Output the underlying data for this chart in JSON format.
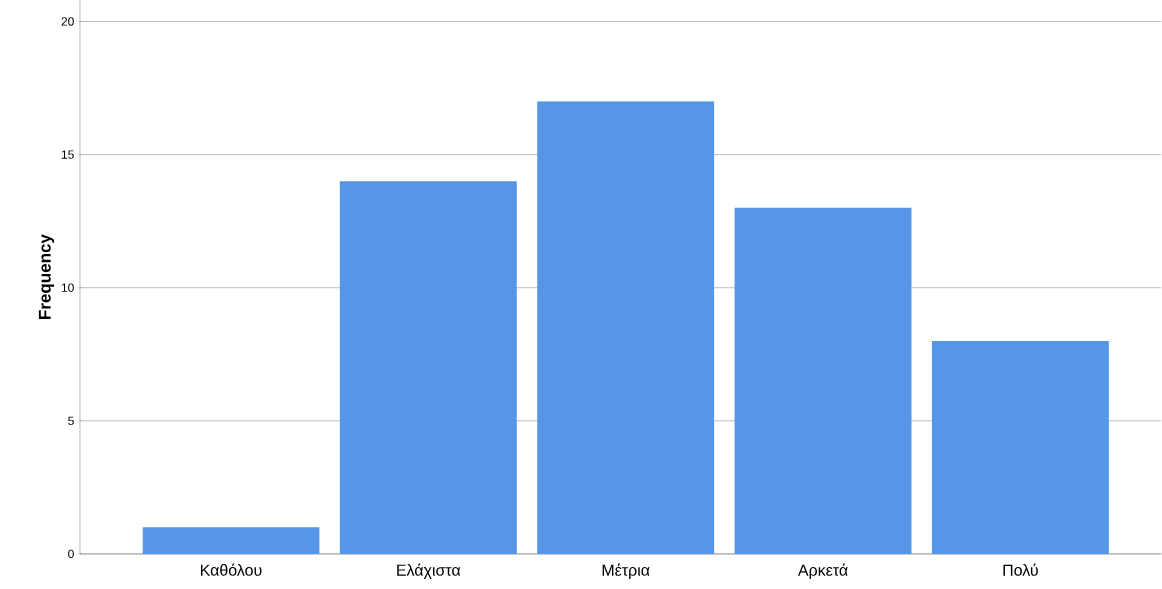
{
  "chart_data": {
    "type": "bar",
    "ylabel": "Frequency",
    "categories": [
      "Καθόλου",
      "Ελάχιστα",
      "Μέτρια",
      "Αρκετά",
      "Πολύ"
    ],
    "values": [
      1,
      14,
      17,
      13,
      8
    ],
    "color": "#5596e6",
    "ylim": [
      0,
      20.8
    ],
    "yticks": [
      0,
      5,
      10,
      15,
      20
    ],
    "grid": "y"
  }
}
